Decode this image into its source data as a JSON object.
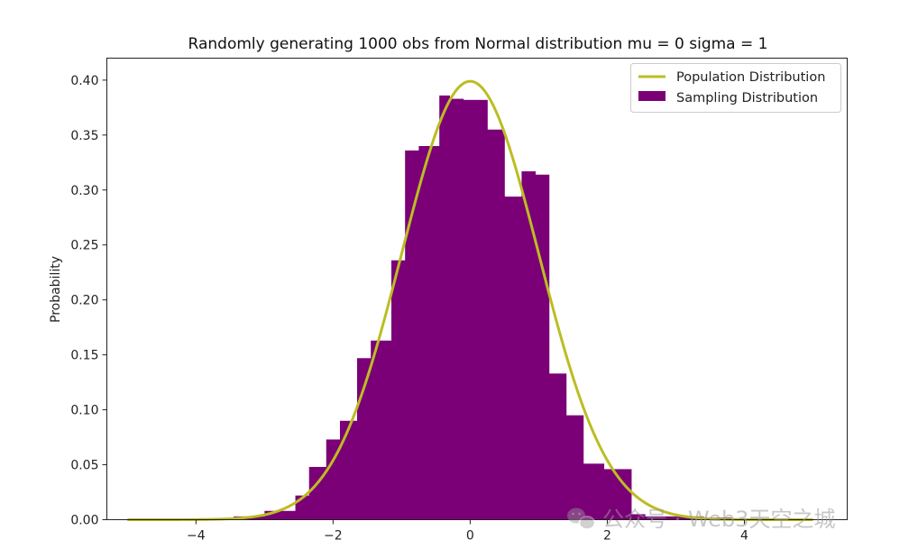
{
  "chart_data": {
    "type": "bar",
    "title": "Randomly generating 1000 obs from Normal distribution mu = 0 sigma = 1",
    "xlabel": "",
    "ylabel": "Probability",
    "xlim": [
      -5.3,
      5.5
    ],
    "ylim": [
      0,
      0.42
    ],
    "xticks": [
      -4,
      -2,
      0,
      2,
      4
    ],
    "xtick_labels": [
      "−4",
      "−2",
      "0",
      "2",
      "4"
    ],
    "yticks": [
      0,
      0.05,
      0.1,
      0.15,
      0.2,
      0.25,
      0.3,
      0.35,
      0.4
    ],
    "ytick_labels": [
      "0.00",
      "0.05",
      "0.10",
      "0.15",
      "0.20",
      "0.25",
      "0.30",
      "0.35",
      "0.40"
    ],
    "grid": false,
    "legend_position": "top-right",
    "series": [
      {
        "name": "Population Distribution",
        "kind": "line",
        "color": "#bcbd22",
        "function": "normal_pdf",
        "mu": 0,
        "sigma": 1,
        "x_range": [
          -5,
          5
        ]
      },
      {
        "name": "Sampling Distribution",
        "kind": "histogram",
        "color": "#7b0077",
        "bin_edges": [
          -3.45,
          -3.0,
          -2.55,
          -2.35,
          -2.1,
          -1.9,
          -1.65,
          -1.45,
          -1.15,
          -0.95,
          -0.75,
          -0.45,
          -0.3,
          -0.1,
          0.25,
          0.5,
          0.75,
          0.95,
          1.15,
          1.4,
          1.65,
          1.95,
          2.35,
          2.55,
          3.0,
          3.4,
          3.8
        ],
        "values": [
          0.003,
          0.008,
          0.022,
          0.048,
          0.073,
          0.09,
          0.147,
          0.163,
          0.236,
          0.336,
          0.34,
          0.386,
          0.383,
          0.382,
          0.355,
          0.294,
          0.317,
          0.314,
          0.133,
          0.095,
          0.051,
          0.046,
          0.005,
          0.003,
          0.003,
          0.002
        ]
      }
    ]
  },
  "watermark": {
    "text": "公众号 · Web3天空之城",
    "icon": "wechat-icon"
  }
}
